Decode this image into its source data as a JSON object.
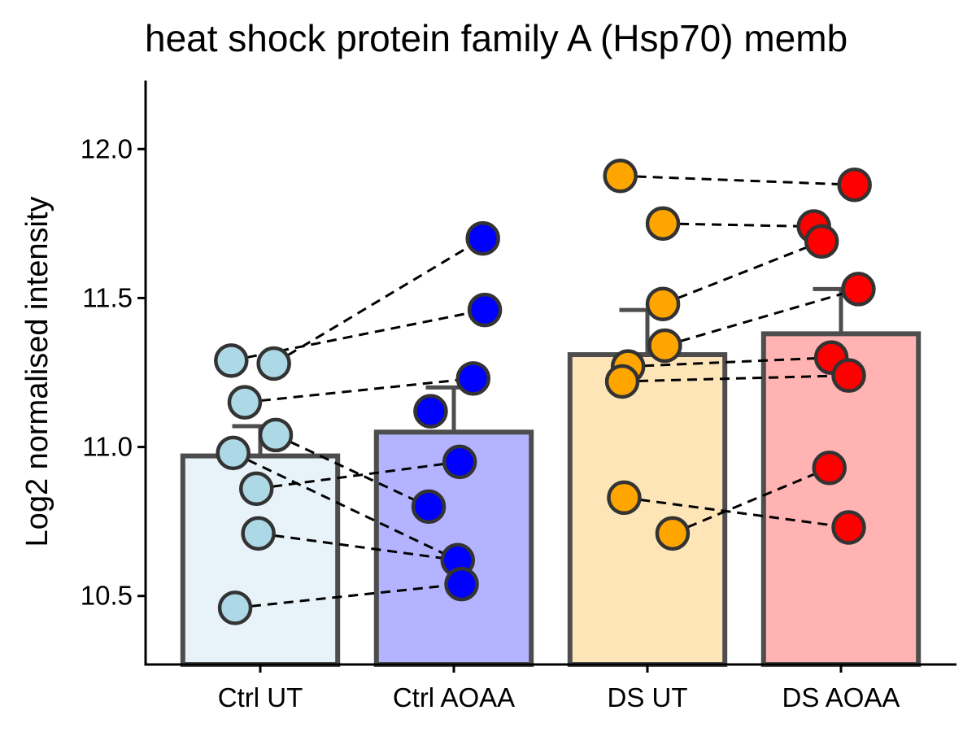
{
  "chart_data": {
    "type": "bar",
    "title": "heat shock protein family A (Hsp70) memb",
    "xlabel": "",
    "ylabel": "Log2 normalised intensity",
    "ylim": [
      10.27,
      12.23
    ],
    "yticks": [
      "10.5",
      "11.0",
      "11.5",
      "12.0"
    ],
    "ytick_values": [
      10.5,
      11.0,
      11.5,
      12.0
    ],
    "grid": false,
    "legend": "none",
    "categories": [
      "Ctrl UT",
      "Ctrl AOAA",
      "DS UT",
      "DS AOAA"
    ],
    "values": [
      10.97,
      11.05,
      11.31,
      11.38
    ],
    "error_upper": [
      11.07,
      11.2,
      11.46,
      11.53
    ],
    "bar_colors": [
      "#e8f3f9",
      "#b3b3ff",
      "#fde5b8",
      "#ffb3b3"
    ],
    "point_colors": [
      "#add8e6",
      "#0000ff",
      "#ffa500",
      "#ff0000"
    ],
    "outline_color": "#4d4d4d",
    "points": [
      {
        "x": [
          -0.15,
          0.07,
          -0.08,
          0.08,
          -0.14,
          -0.02,
          -0.01,
          -0.13
        ],
        "y": [
          11.29,
          11.28,
          11.15,
          11.04,
          10.98,
          10.86,
          10.71,
          10.46
        ]
      },
      {
        "x": [
          0.15,
          0.16,
          0.1,
          -0.12,
          0.03,
          -0.13,
          0.02,
          0.04
        ],
        "y": [
          11.7,
          11.46,
          11.23,
          11.12,
          10.95,
          10.8,
          10.62,
          10.54
        ]
      },
      {
        "x": [
          -0.14,
          0.08,
          0.08,
          0.09,
          -0.1,
          -0.13,
          -0.12,
          0.13
        ],
        "y": [
          11.91,
          11.75,
          11.48,
          11.34,
          11.27,
          11.22,
          10.83,
          10.71
        ]
      },
      {
        "x": [
          0.07,
          -0.14,
          -0.1,
          0.09,
          -0.05,
          0.04,
          -0.06,
          0.04
        ],
        "y": [
          11.88,
          11.74,
          11.69,
          11.53,
          11.3,
          11.24,
          10.93,
          10.73
        ]
      }
    ],
    "pairs": [
      [
        [
          0,
          1
        ],
        [
          1,
          0
        ]
      ],
      [
        [
          0,
          0
        ],
        [
          1,
          1
        ]
      ],
      [
        [
          0,
          2
        ],
        [
          1,
          2
        ]
      ],
      [
        [
          0,
          3
        ],
        [
          1,
          5
        ]
      ],
      [
        [
          0,
          4
        ],
        [
          1,
          6
        ]
      ],
      [
        [
          0,
          5
        ],
        [
          1,
          4
        ]
      ],
      [
        [
          0,
          6
        ],
        [
          1,
          6
        ]
      ],
      [
        [
          0,
          7
        ],
        [
          1,
          7
        ]
      ],
      [
        [
          2,
          0
        ],
        [
          3,
          0
        ]
      ],
      [
        [
          2,
          1
        ],
        [
          3,
          1
        ]
      ],
      [
        [
          2,
          2
        ],
        [
          3,
          2
        ]
      ],
      [
        [
          2,
          3
        ],
        [
          3,
          3
        ]
      ],
      [
        [
          2,
          4
        ],
        [
          3,
          4
        ]
      ],
      [
        [
          2,
          5
        ],
        [
          3,
          5
        ]
      ],
      [
        [
          2,
          6
        ],
        [
          3,
          7
        ]
      ],
      [
        [
          2,
          7
        ],
        [
          3,
          6
        ]
      ]
    ]
  }
}
